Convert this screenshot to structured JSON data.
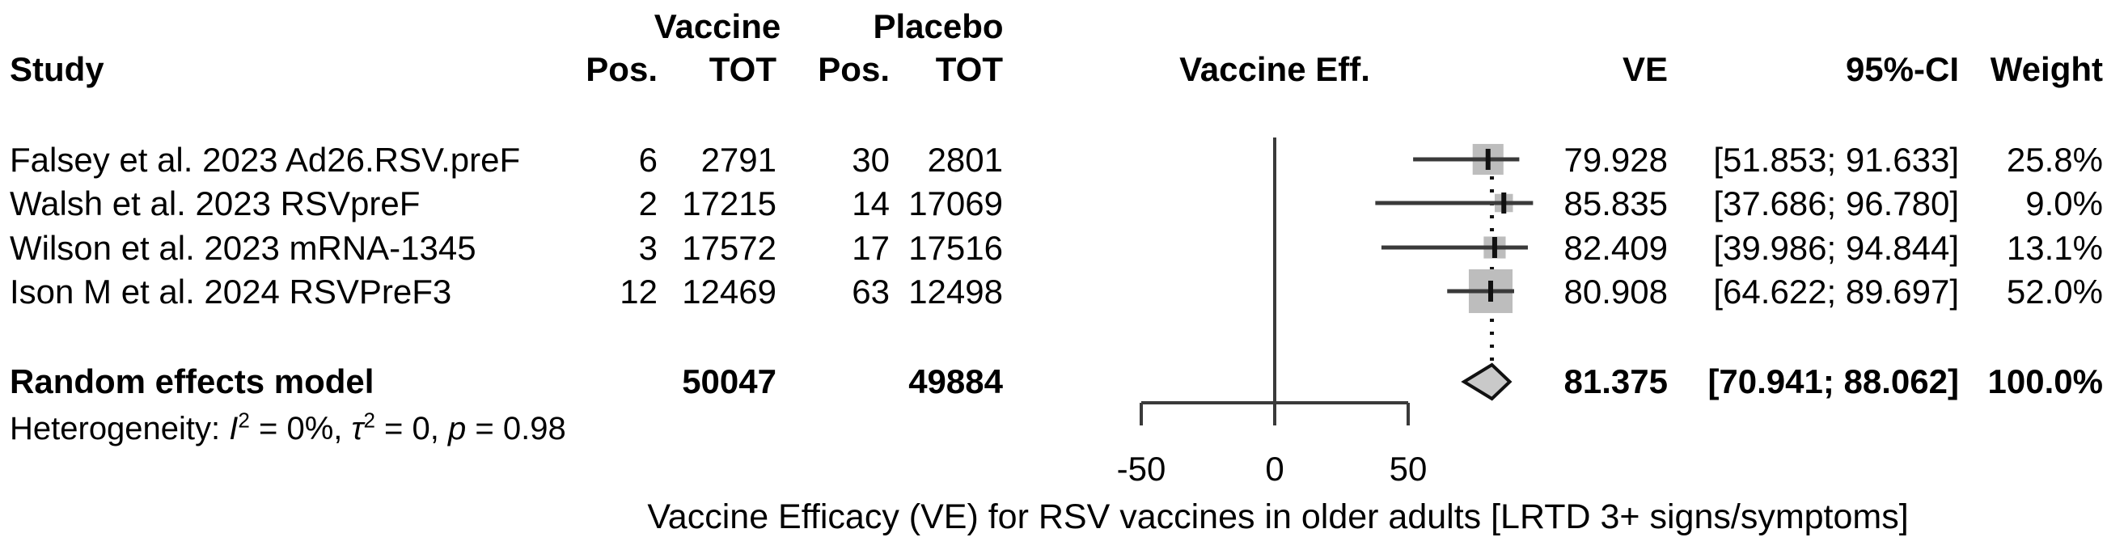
{
  "colors": {
    "square_fill": "#bdbdbd",
    "diamond_fill": "#c9c9c9",
    "line": "#3a3a3a",
    "marker": "#111111",
    "text": "#000000"
  },
  "table": {
    "headers": {
      "study": "Study",
      "vaccine_group": "Vaccine",
      "placebo_group": "Placebo",
      "vaccine_pos": "Pos.",
      "vaccine_tot": "TOT",
      "placebo_pos": "Pos.",
      "placebo_tot": "TOT",
      "plot": "Vaccine Eff.",
      "ve": "VE",
      "ci": "95%-CI",
      "weight": "Weight"
    },
    "rows": [
      {
        "study": "Falsey et al. 2023 Ad26.RSV.preF",
        "v_pos": "6",
        "v_tot": "2791",
        "p_pos": "30",
        "p_tot": "2801",
        "ve": "79.928",
        "ci": "[51.853; 91.633]",
        "weight": "25.8%"
      },
      {
        "study": "Walsh et al. 2023 RSVpreF",
        "v_pos": "2",
        "v_tot": "17215",
        "p_pos": "14",
        "p_tot": "17069",
        "ve": "85.835",
        "ci": "[37.686; 96.780]",
        "weight": "9.0%"
      },
      {
        "study": "Wilson et al. 2023 mRNA-1345",
        "v_pos": "3",
        "v_tot": "17572",
        "p_pos": "17",
        "p_tot": "17516",
        "ve": "82.409",
        "ci": "[39.986; 94.844]",
        "weight": "13.1%"
      },
      {
        "study": "Ison M et al. 2024 RSVPreF3",
        "v_pos": "12",
        "v_tot": "12469",
        "p_pos": "63",
        "p_tot": "12498",
        "ve": "80.908",
        "ci": "[64.622; 89.697]",
        "weight": "52.0%"
      }
    ],
    "summary": {
      "label": "Random effects model",
      "v_tot": "50047",
      "p_tot": "49884",
      "ve": "81.375",
      "ci": "[70.941; 88.062]",
      "weight": "100.0%"
    },
    "heterogeneity": {
      "prefix": "Heterogeneity: ",
      "stat1_name": "I",
      "stat1_sup": "2",
      "seg1": " = 0%, ",
      "stat2_name": "τ",
      "stat2_sup": "2",
      "seg2": " = 0, ",
      "stat3_name": "p",
      "seg3": " = 0.98"
    }
  },
  "chart_data": {
    "type": "forest",
    "effect_label": "Vaccine Eff.",
    "xlabel": "Vaccine Efficacy (VE) for RSV vaccines in older adults [LRTD 3+ signs/symptoms]",
    "axis": {
      "ticks": [
        -50,
        0,
        50
      ],
      "tick_labels": [
        "-50",
        "0",
        "50"
      ],
      "zero_line": 0,
      "xlim": [
        -55,
        100
      ]
    },
    "studies": [
      {
        "name": "Falsey et al. 2023 Ad26.RSV.preF",
        "ve": 79.928,
        "ci_low": 51.853,
        "ci_high": 91.633,
        "weight_pct": 25.8
      },
      {
        "name": "Walsh et al. 2023 RSVpreF",
        "ve": 85.835,
        "ci_low": 37.686,
        "ci_high": 96.78,
        "weight_pct": 9.0
      },
      {
        "name": "Wilson et al. 2023 mRNA-1345",
        "ve": 82.409,
        "ci_low": 39.986,
        "ci_high": 94.844,
        "weight_pct": 13.1
      },
      {
        "name": "Ison M et al. 2024 RSVPreF3",
        "ve": 80.908,
        "ci_low": 64.622,
        "ci_high": 89.697,
        "weight_pct": 52.0
      }
    ],
    "overall": {
      "name": "Random effects model",
      "ve": 81.375,
      "ci_low": 70.941,
      "ci_high": 88.062,
      "weight_pct": 100.0
    }
  }
}
